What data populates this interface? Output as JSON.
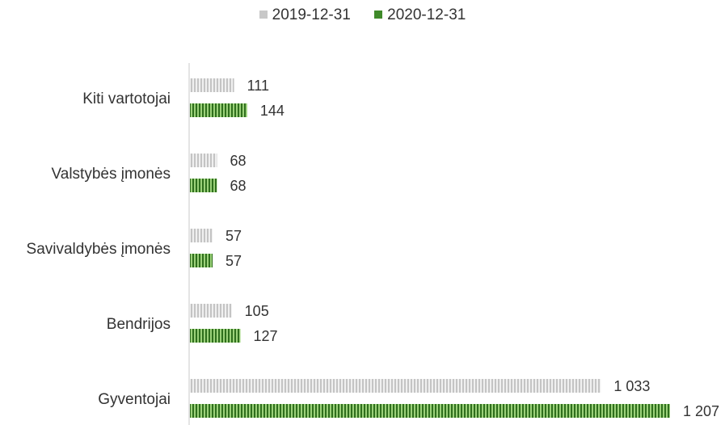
{
  "chart_data": {
    "type": "bar",
    "orientation": "horizontal",
    "categories": [
      "Kiti vartotojai",
      "Valstybės įmonės",
      "Savivaldybės įmonės",
      "Bendrijos",
      "Gyventojai"
    ],
    "series": [
      {
        "name": "2019-12-31",
        "values": [
          111,
          68,
          57,
          105,
          1033
        ],
        "labels": [
          "111",
          "68",
          "57",
          "105",
          "1 033"
        ],
        "color": "#c8c8c8"
      },
      {
        "name": "2020-12-31",
        "values": [
          144,
          68,
          57,
          127,
          1207
        ],
        "labels": [
          "144",
          "68",
          "57",
          "127",
          "1 207"
        ],
        "color": "#3f8a2a"
      }
    ],
    "xlim": [
      0,
      1207
    ],
    "grid": false,
    "legend_position": "top-center"
  }
}
